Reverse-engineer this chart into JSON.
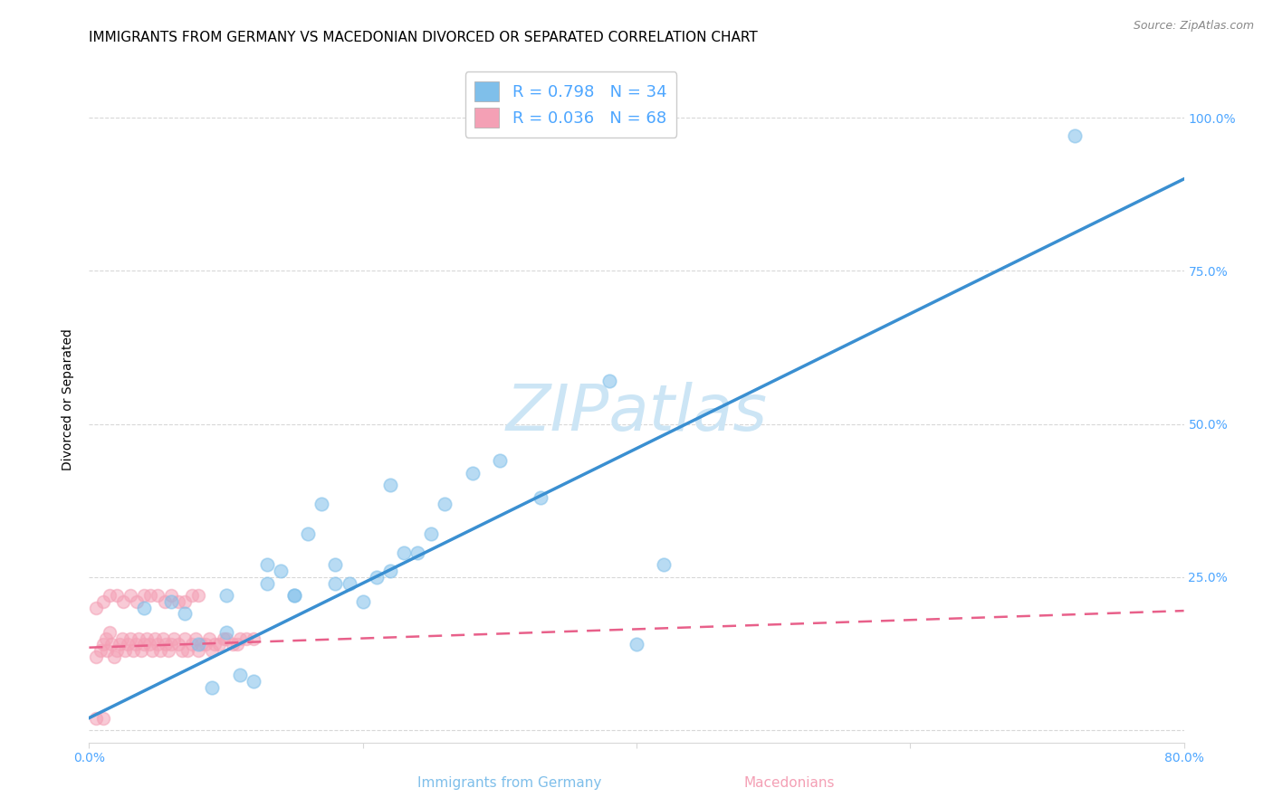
{
  "title": "IMMIGRANTS FROM GERMANY VS MACEDONIAN DIVORCED OR SEPARATED CORRELATION CHART",
  "source": "Source: ZipAtlas.com",
  "ylabel": "Divorced or Separated",
  "xlabel_germany": "Immigrants from Germany",
  "xlabel_macedonians": "Macedonians",
  "watermark": "ZIPatlas",
  "xmin": 0.0,
  "xmax": 0.8,
  "ymin": -0.02,
  "ymax": 1.1,
  "yticks": [
    0.0,
    0.25,
    0.5,
    0.75,
    1.0
  ],
  "ytick_labels": [
    "",
    "25.0%",
    "50.0%",
    "75.0%",
    "100.0%"
  ],
  "xticks": [
    0.0,
    0.2,
    0.4,
    0.6,
    0.8
  ],
  "xtick_labels": [
    "0.0%",
    "",
    "",
    "",
    "80.0%"
  ],
  "blue_color": "#7fbfea",
  "pink_color": "#f4a0b5",
  "blue_line_color": "#3a8fd1",
  "pink_line_color": "#e8608a",
  "blue_scatter_x": [
    0.04,
    0.06,
    0.07,
    0.08,
    0.09,
    0.1,
    0.11,
    0.12,
    0.13,
    0.14,
    0.15,
    0.16,
    0.17,
    0.18,
    0.19,
    0.2,
    0.21,
    0.22,
    0.23,
    0.25,
    0.26,
    0.28,
    0.3,
    0.33,
    0.38,
    0.42,
    0.72,
    0.1,
    0.13,
    0.15,
    0.18,
    0.22,
    0.24,
    0.4
  ],
  "blue_scatter_y": [
    0.2,
    0.21,
    0.19,
    0.14,
    0.07,
    0.16,
    0.09,
    0.08,
    0.24,
    0.26,
    0.22,
    0.32,
    0.37,
    0.27,
    0.24,
    0.21,
    0.25,
    0.4,
    0.29,
    0.32,
    0.37,
    0.42,
    0.44,
    0.38,
    0.57,
    0.27,
    0.97,
    0.22,
    0.27,
    0.22,
    0.24,
    0.26,
    0.29,
    0.14
  ],
  "pink_scatter_x": [
    0.005,
    0.008,
    0.01,
    0.012,
    0.013,
    0.015,
    0.016,
    0.018,
    0.02,
    0.022,
    0.024,
    0.026,
    0.028,
    0.03,
    0.032,
    0.034,
    0.036,
    0.038,
    0.04,
    0.042,
    0.044,
    0.046,
    0.048,
    0.05,
    0.052,
    0.054,
    0.056,
    0.058,
    0.06,
    0.062,
    0.065,
    0.068,
    0.07,
    0.072,
    0.075,
    0.078,
    0.08,
    0.082,
    0.085,
    0.088,
    0.09,
    0.092,
    0.095,
    0.098,
    0.1,
    0.105,
    0.108,
    0.11,
    0.115,
    0.12,
    0.005,
    0.01,
    0.015,
    0.02,
    0.025,
    0.03,
    0.035,
    0.04,
    0.045,
    0.05,
    0.055,
    0.06,
    0.065,
    0.07,
    0.075,
    0.08,
    0.005,
    0.01
  ],
  "pink_scatter_y": [
    0.12,
    0.13,
    0.14,
    0.15,
    0.13,
    0.16,
    0.14,
    0.12,
    0.13,
    0.14,
    0.15,
    0.13,
    0.14,
    0.15,
    0.13,
    0.14,
    0.15,
    0.13,
    0.14,
    0.15,
    0.14,
    0.13,
    0.15,
    0.14,
    0.13,
    0.15,
    0.14,
    0.13,
    0.14,
    0.15,
    0.14,
    0.13,
    0.15,
    0.13,
    0.14,
    0.15,
    0.13,
    0.14,
    0.14,
    0.15,
    0.13,
    0.14,
    0.14,
    0.15,
    0.15,
    0.14,
    0.14,
    0.15,
    0.15,
    0.15,
    0.2,
    0.21,
    0.22,
    0.22,
    0.21,
    0.22,
    0.21,
    0.22,
    0.22,
    0.22,
    0.21,
    0.22,
    0.21,
    0.21,
    0.22,
    0.22,
    0.02,
    0.02
  ],
  "blue_fit_x": [
    0.0,
    0.8
  ],
  "blue_fit_y": [
    0.02,
    0.9
  ],
  "pink_fit_x": [
    0.0,
    0.8
  ],
  "pink_fit_y": [
    0.135,
    0.195
  ],
  "background_color": "#ffffff",
  "grid_color": "#d8d8d8",
  "title_fontsize": 11,
  "axis_label_fontsize": 10,
  "tick_fontsize": 10,
  "legend_fontsize": 13,
  "watermark_fontsize": 52,
  "watermark_color": "#cce5f5",
  "tick_color": "#4da6ff"
}
